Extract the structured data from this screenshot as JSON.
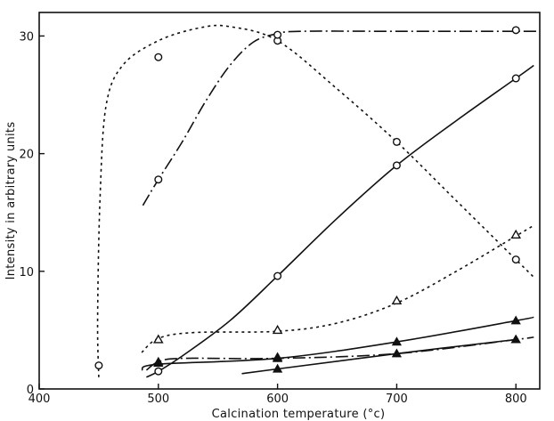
{
  "chart_data": {
    "type": "line",
    "title": "",
    "xlabel": "Calcination temperature (°c)",
    "ylabel": "Intensity in arbitrary units",
    "xlim": [
      400,
      820
    ],
    "ylim": [
      0,
      32
    ],
    "xticks": [
      400,
      500,
      600,
      700,
      800
    ],
    "yticks": [
      0,
      10,
      20,
      30
    ],
    "grid": false,
    "legend": "none",
    "series": [
      {
        "style": "dashed",
        "marker": "circle-open",
        "points": [
          [
            450,
            2
          ],
          [
            500,
            28.2
          ],
          [
            600,
            29.6
          ],
          [
            700,
            21
          ],
          [
            800,
            11
          ]
        ],
        "curve": [
          [
            450,
            1
          ],
          [
            449,
            6
          ],
          [
            451,
            16
          ],
          [
            456,
            24
          ],
          [
            470,
            27.5
          ],
          [
            500,
            29.6
          ],
          [
            535,
            30.7
          ],
          [
            560,
            30.8
          ],
          [
            600,
            29.6
          ],
          [
            650,
            25.5
          ],
          [
            700,
            21
          ],
          [
            750,
            16
          ],
          [
            800,
            11
          ],
          [
            815,
            9.5
          ]
        ]
      },
      {
        "style": "dash-dot",
        "marker": "circle-open",
        "points": [
          [
            500,
            17.8
          ],
          [
            600,
            30.1
          ],
          [
            800,
            30.5
          ]
        ],
        "curve": [
          [
            487,
            15.6
          ],
          [
            500,
            17.8
          ],
          [
            520,
            21
          ],
          [
            540,
            24.5
          ],
          [
            560,
            27.5
          ],
          [
            580,
            29.5
          ],
          [
            600,
            30.2
          ],
          [
            620,
            30.4
          ],
          [
            700,
            30.4
          ],
          [
            800,
            30.4
          ],
          [
            820,
            30.4
          ]
        ]
      },
      {
        "style": "solid",
        "marker": "circle-open",
        "points": [
          [
            500,
            1.5
          ],
          [
            600,
            9.6
          ],
          [
            700,
            19
          ],
          [
            800,
            26.4
          ]
        ],
        "curve": [
          [
            490,
            1
          ],
          [
            500,
            1.5
          ],
          [
            520,
            2.8
          ],
          [
            560,
            5.8
          ],
          [
            600,
            9.6
          ],
          [
            650,
            14.5
          ],
          [
            700,
            19
          ],
          [
            750,
            22.8
          ],
          [
            800,
            26.4
          ],
          [
            815,
            27.5
          ]
        ]
      },
      {
        "style": "dashed",
        "marker": "triangle-open",
        "points": [
          [
            500,
            4.2
          ],
          [
            600,
            5
          ],
          [
            700,
            7.5
          ],
          [
            800,
            13.1
          ]
        ],
        "curve": [
          [
            486,
            3.1
          ],
          [
            500,
            4.3
          ],
          [
            530,
            4.8
          ],
          [
            600,
            4.9
          ],
          [
            650,
            5.6
          ],
          [
            700,
            7.3
          ],
          [
            750,
            10
          ],
          [
            800,
            13
          ],
          [
            815,
            13.9
          ]
        ]
      },
      {
        "style": "solid",
        "marker": "triangle-filled",
        "points": [
          [
            500,
            2.2
          ],
          [
            600,
            2.7
          ],
          [
            700,
            4
          ],
          [
            800,
            5.8
          ]
        ],
        "curve": [
          [
            486,
            1.6
          ],
          [
            500,
            2.1
          ],
          [
            600,
            2.6
          ],
          [
            700,
            4
          ],
          [
            800,
            5.8
          ],
          [
            815,
            6.1
          ]
        ]
      },
      {
        "style": "dash-dot",
        "marker": "triangle-filled",
        "points": [
          [
            500,
            2.3
          ],
          [
            600,
            2.6
          ],
          [
            700,
            3
          ],
          [
            800,
            4.2
          ]
        ],
        "curve": [
          [
            490,
            1.6
          ],
          [
            500,
            2.3
          ],
          [
            520,
            2.6
          ],
          [
            600,
            2.6
          ],
          [
            700,
            3
          ],
          [
            800,
            4.2
          ],
          [
            815,
            4.4
          ]
        ]
      },
      {
        "style": "solid",
        "marker": "triangle-filled",
        "points": [
          [
            600,
            1.7
          ],
          [
            800,
            4.2
          ]
        ],
        "curve": [
          [
            570,
            1.3
          ],
          [
            600,
            1.7
          ],
          [
            700,
            3
          ],
          [
            800,
            4.2
          ]
        ]
      }
    ]
  }
}
